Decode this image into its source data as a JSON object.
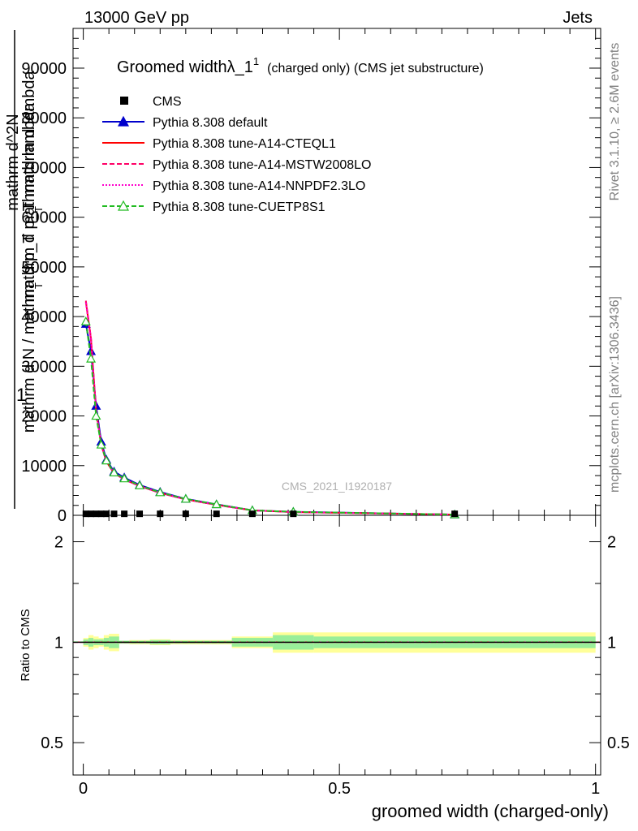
{
  "header": {
    "left": "13000 GeV pp",
    "right": "Jets"
  },
  "side_labels": {
    "rivet": "Rivet 3.1.10, ≥ 2.6M events",
    "mcplots": "mcplots.cern.ch [arXiv:1306.3436]"
  },
  "watermark": "CMS_2021_I1920187",
  "chart_data": {
    "type": "line",
    "title": "Groomed widthλ_1",
    "title_sup": "1",
    "title_suffix": "(charged only) (CMS jet substructure)",
    "ylabel_top": "1",
    "ylabel_lines": [
      "mathrm d N / mathrm d p_T mathrm d lambda",
      "mathrm d^2N",
      "mathrm d p_T mathrm d lambda"
    ],
    "ylabel_T_marks": [
      "T",
      "T"
    ],
    "xlabel": "groomed width (charged-only)",
    "ratio_ylabel": "Ratio to CMS",
    "xlim": [
      -0.02,
      1.01
    ],
    "ylim": [
      0,
      98000
    ],
    "ratio_ylim": [
      0.4,
      2.4
    ],
    "ratio_log": true,
    "x_ticks": [
      0,
      0.5,
      1
    ],
    "x_tick_labels": [
      "0",
      "0.5",
      "1"
    ],
    "y_ticks": [
      0,
      10000,
      20000,
      30000,
      40000,
      50000,
      60000,
      70000,
      80000,
      90000
    ],
    "y_tick_labels": [
      "0",
      "10000",
      "20000",
      "30000",
      "40000",
      "50000",
      "60000",
      "70000",
      "80000",
      "90000"
    ],
    "ratio_ticks": [
      0.5,
      1,
      2
    ],
    "ratio_tick_labels": [
      "0.5",
      "1",
      "2"
    ],
    "legend_position": "top-left",
    "bins": [
      0.0,
      0.01,
      0.02,
      0.03,
      0.04,
      0.05,
      0.07,
      0.09,
      0.13,
      0.17,
      0.23,
      0.29,
      0.37,
      0.45,
      1.0
    ],
    "band_inner": [
      0.02,
      0.03,
      0.02,
      0.02,
      0.03,
      0.04,
      0.01,
      0.01,
      0.015,
      0.01,
      0.01,
      0.03,
      0.05,
      0.04
    ],
    "band_outer": [
      0.03,
      0.05,
      0.04,
      0.03,
      0.05,
      0.06,
      0.01,
      0.015,
      0.02,
      0.015,
      0.015,
      0.04,
      0.07,
      0.07
    ],
    "series": [
      {
        "name": "CMS",
        "color": "#000000",
        "style": "data",
        "x": [
          0.005,
          0.015,
          0.025,
          0.035,
          0.045,
          0.06,
          0.08,
          0.11,
          0.15,
          0.2,
          0.26,
          0.33,
          0.41,
          0.725
        ],
        "y": [
          300,
          300,
          300,
          300,
          300,
          300,
          300,
          300,
          300,
          300,
          300,
          300,
          300,
          300
        ]
      },
      {
        "name": "Pythia 8.308 default",
        "color": "#0000cc",
        "style": "solid",
        "marker": "triangle",
        "x": [
          0.005,
          0.015,
          0.025,
          0.035,
          0.045,
          0.06,
          0.08,
          0.11,
          0.15,
          0.2,
          0.26,
          0.33,
          0.41,
          0.725
        ],
        "y": [
          38500,
          33000,
          22000,
          14800,
          11200,
          8800,
          7600,
          6100,
          4700,
          3300,
          2200,
          1000,
          700,
          150
        ]
      },
      {
        "name": "Pythia 8.308 tune-A14-CTEQL1",
        "color": "#ff0000",
        "style": "solid",
        "x": [
          0.005,
          0.015,
          0.025,
          0.035,
          0.045,
          0.06,
          0.08,
          0.11,
          0.15,
          0.2,
          0.26,
          0.33,
          0.41,
          0.725
        ],
        "y": [
          43000,
          35500,
          21000,
          14200,
          10800,
          8500,
          7200,
          5900,
          4500,
          3200,
          2100,
          1000,
          650,
          150
        ]
      },
      {
        "name": "Pythia 8.308 tune-A14-MSTW2008LO",
        "color": "#ff0066",
        "style": "dashed",
        "x": [
          0.005,
          0.015,
          0.025,
          0.035,
          0.045,
          0.06,
          0.08,
          0.11,
          0.15,
          0.2,
          0.26,
          0.33,
          0.41,
          0.725
        ],
        "y": [
          43200,
          35700,
          21000,
          14200,
          10800,
          8500,
          7200,
          5900,
          4500,
          3200,
          2100,
          1000,
          650,
          150
        ]
      },
      {
        "name": "Pythia 8.308 tune-A14-NNPDF2.3LO",
        "color": "#ff00cc",
        "style": "dotted",
        "x": [
          0.005,
          0.015,
          0.025,
          0.035,
          0.045,
          0.06,
          0.08,
          0.11,
          0.15,
          0.2,
          0.26,
          0.33,
          0.41,
          0.725
        ],
        "y": [
          42800,
          35300,
          21000,
          14300,
          10900,
          8500,
          7200,
          5900,
          4500,
          3200,
          2100,
          1000,
          650,
          150
        ]
      },
      {
        "name": "Pythia 8.308 tune-CUETP8S1",
        "color": "#22bb22",
        "style": "dashed",
        "marker": "triangle-open",
        "x": [
          0.005,
          0.015,
          0.025,
          0.035,
          0.045,
          0.06,
          0.08,
          0.11,
          0.15,
          0.2,
          0.26,
          0.33,
          0.41,
          0.725
        ],
        "y": [
          39000,
          31500,
          20000,
          14200,
          11000,
          8600,
          7400,
          6000,
          4600,
          3300,
          2200,
          1000,
          700,
          150
        ]
      }
    ]
  }
}
